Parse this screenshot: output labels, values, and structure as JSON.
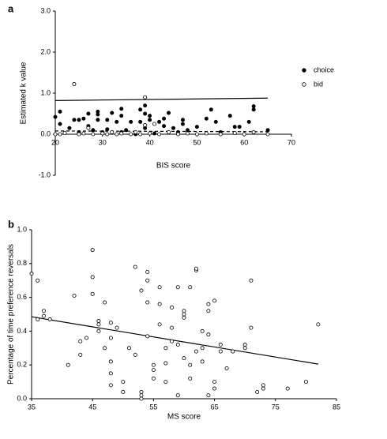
{
  "chart_data": [
    {
      "type": "scatter",
      "panel_label": "a",
      "xlabel": "BIS score",
      "ylabel": "Estimated k value",
      "xlim": [
        20,
        70
      ],
      "ylim": [
        -1,
        3
      ],
      "xticks": [
        20,
        30,
        40,
        50,
        60,
        70
      ],
      "yticks": [
        {
          "value": -1,
          "label": "-1.0"
        },
        {
          "value": 0,
          "label": "0.0"
        },
        {
          "value": 1,
          "label": "1.0"
        },
        {
          "value": 2,
          "label": "2.0"
        },
        {
          "value": 3,
          "label": "3.0"
        }
      ],
      "x_axis_crosses": 0,
      "legend": "right",
      "series": [
        {
          "name": "choice",
          "marker": "filled",
          "color": "#000000",
          "x": [
            20,
            21,
            21,
            23,
            24,
            25,
            26,
            25,
            27,
            27,
            28,
            29,
            29,
            29,
            30,
            31,
            31,
            32,
            33,
            34,
            34,
            34,
            35,
            36,
            37,
            38,
            38,
            39,
            39,
            39,
            40,
            40,
            41,
            42,
            43,
            43,
            44,
            45,
            46,
            47,
            47,
            48,
            50,
            52,
            53,
            54,
            55,
            57,
            58,
            59,
            61,
            62,
            62,
            65
          ],
          "values": [
            0.42,
            0.55,
            0.25,
            0.15,
            0.35,
            0.35,
            0.38,
            0.05,
            0.5,
            0.2,
            0.1,
            0.55,
            0.48,
            0.35,
            0.05,
            0.35,
            0.12,
            0.52,
            0.3,
            0.62,
            0.45,
            0.05,
            0.1,
            0.3,
            0.0,
            0.6,
            0.3,
            0.7,
            0.5,
            0.15,
            0.45,
            0.35,
            0.02,
            0.3,
            0.38,
            0.2,
            0.52,
            0.15,
            0.05,
            0.35,
            0.25,
            0.1,
            0.18,
            0.38,
            0.6,
            0.3,
            0.05,
            0.45,
            0.18,
            0.18,
            0.3,
            0.6,
            0.68,
            0.1
          ]
        },
        {
          "name": "bid",
          "marker": "open",
          "color": "#000000",
          "x": [
            20,
            21,
            22,
            24,
            25,
            26,
            27,
            28,
            30,
            31,
            32,
            33,
            34,
            36,
            37,
            38,
            39,
            39,
            40,
            41,
            42,
            44,
            46,
            48,
            50,
            52,
            55,
            58,
            60,
            62,
            65
          ],
          "values": [
            0.0,
            0.0,
            0.03,
            1.22,
            0.0,
            0.02,
            0.15,
            0.0,
            0.02,
            0.0,
            0.05,
            0.0,
            0.02,
            0.0,
            0.05,
            0.0,
            0.9,
            0.22,
            0.02,
            0.25,
            0.0,
            0.05,
            0.0,
            0.02,
            0.0,
            0.02,
            0.0,
            0.03,
            0.0,
            0.05,
            0.0
          ]
        }
      ],
      "fit_lines": [
        {
          "style": "solid",
          "x": [
            20,
            65
          ],
          "values": [
            0.82,
            0.88
          ]
        },
        {
          "style": "dashed",
          "x": [
            20,
            65
          ],
          "values": [
            0.08,
            0.06
          ]
        }
      ]
    },
    {
      "type": "scatter",
      "panel_label": "b",
      "xlabel": "MS score",
      "ylabel": "Percentage of time preference reversals",
      "xlim": [
        35,
        85
      ],
      "ylim": [
        0,
        1
      ],
      "xticks": [
        35,
        45,
        55,
        65,
        75,
        85
      ],
      "yticks": [
        {
          "value": 0,
          "label": "0.0"
        },
        {
          "value": 0.2,
          "label": "0.2"
        },
        {
          "value": 0.4,
          "label": "0.4"
        },
        {
          "value": 0.6,
          "label": "0.6"
        },
        {
          "value": 0.8,
          "label": "0.8"
        },
        {
          "value": 1,
          "label": "1.0"
        }
      ],
      "series": [
        {
          "marker": "open",
          "color": "#000000",
          "x": [
            35,
            36,
            36,
            37,
            37,
            38,
            41,
            42,
            43,
            43,
            44,
            45,
            45,
            45,
            46,
            46,
            46,
            47,
            47,
            48,
            48,
            48,
            48,
            48,
            49,
            50,
            50,
            51,
            52,
            52,
            53,
            53,
            53,
            53,
            54,
            54,
            54,
            54,
            55,
            55,
            55,
            56,
            56,
            56,
            57,
            57,
            57,
            58,
            58,
            58,
            59,
            59,
            59,
            60,
            60,
            60,
            60,
            61,
            61,
            61,
            62,
            62,
            62,
            63,
            63,
            63,
            64,
            64,
            64,
            64,
            65,
            65,
            65,
            66,
            66,
            67,
            68,
            70,
            70,
            71,
            71,
            72,
            73,
            73,
            77,
            80,
            82
          ],
          "values": [
            0.74,
            0.7,
            0.47,
            0.52,
            0.49,
            0.47,
            0.2,
            0.61,
            0.26,
            0.34,
            0.36,
            0.88,
            0.72,
            0.62,
            0.46,
            0.44,
            0.4,
            0.57,
            0.3,
            0.45,
            0.36,
            0.22,
            0.15,
            0.08,
            0.42,
            0.1,
            0.04,
            0.3,
            0.78,
            0.26,
            0.64,
            0.04,
            0.02,
            0.0,
            0.75,
            0.7,
            0.57,
            0.37,
            0.17,
            0.12,
            0.2,
            0.56,
            0.66,
            0.44,
            0.3,
            0.21,
            0.1,
            0.54,
            0.34,
            0.42,
            0.02,
            0.66,
            0.32,
            0.52,
            0.5,
            0.48,
            0.24,
            0.66,
            0.2,
            0.12,
            0.28,
            0.76,
            0.77,
            0.4,
            0.22,
            0.3,
            0.56,
            0.38,
            0.52,
            0.02,
            0.58,
            0.1,
            0.06,
            0.32,
            0.28,
            0.18,
            0.28,
            0.32,
            0.3,
            0.7,
            0.42,
            0.04,
            0.08,
            0.06,
            0.06,
            0.1,
            0.44
          ]
        }
      ],
      "fit_lines": [
        {
          "style": "solid",
          "x": [
            35,
            82
          ],
          "values": [
            0.485,
            0.205
          ]
        }
      ]
    }
  ]
}
